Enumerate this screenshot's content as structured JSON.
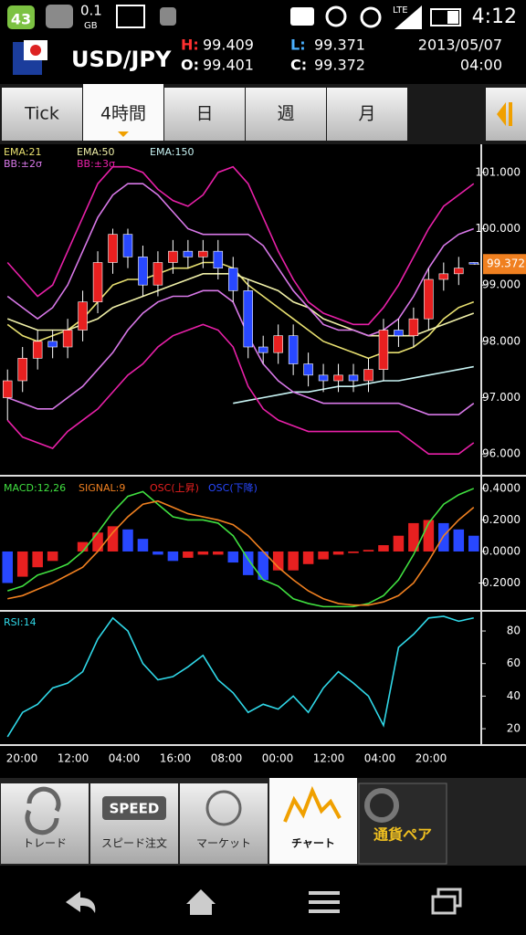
{
  "status_bar": {
    "notification_count": "43",
    "data_amount": "0.1",
    "data_unit": "GB",
    "network": "LTE",
    "time": "4:12"
  },
  "header": {
    "pair": "USD/JPY",
    "high_label": "H:",
    "high": 99.409,
    "open_label": "O:",
    "open": 99.401,
    "low_label": "L:",
    "low": 99.371,
    "close_label": "C:",
    "close": 99.372,
    "date": "2013/05/07",
    "time": "04:00"
  },
  "tabs": {
    "items": [
      "Tick",
      "4時間",
      "日",
      "週",
      "月"
    ],
    "active": 1
  },
  "chart_data": [
    {
      "type": "candlestick",
      "last_price": 99.372,
      "ylim": [
        95.63,
        101.5
      ],
      "yticks": [
        {
          "value": 101,
          "label": "101.000"
        },
        {
          "value": 100,
          "label": "100.000"
        },
        {
          "value": 99,
          "label": "99.000"
        },
        {
          "value": 98,
          "label": "98.000"
        },
        {
          "value": 97,
          "label": "97.000"
        },
        {
          "value": 96,
          "label": "96.000"
        }
      ],
      "up_color": "#e82020",
      "down_color": "#2848ff",
      "open": [
        97.0,
        97.3,
        97.7,
        98.0,
        97.9,
        98.2,
        98.7,
        99.4,
        99.9,
        99.5,
        99.0,
        99.4,
        99.6,
        99.5,
        99.6,
        99.3,
        98.9,
        97.9,
        97.8,
        98.1,
        97.6,
        97.4,
        97.3,
        97.4,
        97.3,
        97.5,
        98.2,
        98.1,
        98.4,
        99.1,
        99.2,
        99.401
      ],
      "high": [
        97.5,
        97.9,
        98.2,
        98.2,
        98.4,
        98.9,
        99.6,
        100.0,
        100.0,
        99.7,
        99.6,
        99.8,
        99.8,
        99.8,
        99.8,
        99.5,
        99.1,
        98.1,
        98.3,
        98.3,
        97.8,
        97.6,
        97.6,
        97.6,
        97.7,
        98.4,
        98.4,
        98.6,
        99.3,
        99.4,
        99.5,
        99.409
      ],
      "low": [
        96.6,
        97.1,
        97.5,
        97.7,
        97.7,
        98.0,
        98.5,
        99.2,
        99.3,
        98.8,
        98.8,
        99.2,
        99.3,
        99.3,
        99.1,
        98.7,
        97.7,
        97.6,
        97.6,
        97.4,
        97.2,
        97.1,
        97.1,
        97.1,
        97.1,
        97.3,
        97.9,
        97.9,
        98.2,
        98.9,
        99.0,
        99.371
      ],
      "close": [
        97.3,
        97.7,
        98.0,
        97.9,
        98.2,
        98.7,
        99.4,
        99.9,
        99.5,
        99.0,
        99.4,
        99.6,
        99.5,
        99.6,
        99.3,
        98.9,
        97.9,
        97.8,
        98.1,
        97.6,
        97.4,
        97.3,
        97.4,
        97.3,
        97.5,
        98.2,
        98.1,
        98.4,
        99.1,
        99.2,
        99.3,
        99.372
      ],
      "series": [
        {
          "name": "EMA:21",
          "color": "#e8e070",
          "values": [
            98.3,
            98.1,
            98.0,
            98.1,
            98.2,
            98.4,
            98.7,
            99.0,
            99.1,
            99.1,
            99.2,
            99.3,
            99.3,
            99.4,
            99.4,
            99.3,
            99.0,
            98.8,
            98.6,
            98.4,
            98.2,
            98.0,
            97.9,
            97.8,
            97.7,
            97.8,
            97.8,
            97.9,
            98.1,
            98.4,
            98.6,
            98.7
          ]
        },
        {
          "name": "EMA:50",
          "color": "#f0f0a8",
          "values": [
            98.4,
            98.3,
            98.2,
            98.2,
            98.2,
            98.3,
            98.4,
            98.6,
            98.7,
            98.8,
            98.9,
            99.0,
            99.1,
            99.2,
            99.2,
            99.2,
            99.1,
            99.0,
            98.9,
            98.7,
            98.6,
            98.4,
            98.3,
            98.2,
            98.1,
            98.1,
            98.1,
            98.1,
            98.2,
            98.3,
            98.4,
            98.5
          ]
        },
        {
          "name": "EMA:150",
          "color": "#c8f4f4",
          "values": [
            null,
            null,
            null,
            null,
            null,
            null,
            null,
            null,
            null,
            null,
            null,
            null,
            null,
            null,
            null,
            96.9,
            96.95,
            97.0,
            97.05,
            97.1,
            97.1,
            97.15,
            97.2,
            97.2,
            97.25,
            97.3,
            97.3,
            97.35,
            97.4,
            97.45,
            97.5,
            97.55
          ]
        },
        {
          "name": "BB:±2σ",
          "color": "#d878e8",
          "values": [
            98.8,
            98.6,
            98.4,
            98.6,
            99.0,
            99.6,
            100.2,
            100.6,
            100.8,
            100.8,
            100.6,
            100.3,
            100.0,
            99.9,
            99.9,
            99.9,
            99.9,
            99.7,
            99.3,
            98.9,
            98.6,
            98.3,
            98.2,
            98.2,
            98.1,
            98.2,
            98.4,
            98.8,
            99.3,
            99.7,
            99.9,
            100.0
          ]
        },
        {
          "color": "#d878e8",
          "values": [
            97.0,
            96.9,
            96.8,
            96.8,
            97.0,
            97.2,
            97.5,
            97.8,
            98.2,
            98.5,
            98.7,
            98.8,
            98.8,
            98.9,
            98.9,
            98.7,
            98.1,
            97.6,
            97.3,
            97.1,
            97.0,
            96.9,
            96.9,
            96.9,
            96.9,
            96.9,
            96.9,
            96.8,
            96.7,
            96.7,
            96.7,
            96.9
          ]
        },
        {
          "name": "BB:±3σ",
          "color": "#e820a8",
          "values": [
            99.4,
            99.1,
            98.8,
            99.0,
            99.6,
            100.2,
            100.8,
            101.1,
            101.1,
            101.0,
            100.7,
            100.5,
            100.4,
            100.6,
            101.0,
            101.1,
            100.8,
            100.2,
            99.6,
            99.1,
            98.7,
            98.5,
            98.4,
            98.3,
            98.3,
            98.6,
            99.0,
            99.5,
            100.0,
            100.4,
            100.6,
            100.8
          ]
        },
        {
          "color": "#e820a8",
          "values": [
            96.6,
            96.3,
            96.2,
            96.1,
            96.4,
            96.6,
            96.8,
            97.1,
            97.4,
            97.6,
            97.9,
            98.1,
            98.2,
            98.3,
            98.2,
            97.9,
            97.2,
            96.8,
            96.6,
            96.5,
            96.4,
            96.4,
            96.4,
            96.4,
            96.4,
            96.4,
            96.4,
            96.2,
            96.0,
            96.0,
            96.0,
            96.2
          ]
        }
      ]
    },
    {
      "type": "macd",
      "ylim": [
        -0.371,
        0.475
      ],
      "yticks": [
        {
          "value": 0.4,
          "label": "0.4000"
        },
        {
          "value": 0.2,
          "label": "0.2000"
        },
        {
          "value": 0,
          "label": "0.0000"
        },
        {
          "value": -0.2,
          "label": "-0.2000"
        }
      ],
      "osc": {
        "up_name": "OSC(上昇)",
        "up_color": "#e82020",
        "down_name": "OSC(下降)",
        "down_color": "#2848ff",
        "values": [
          -0.2,
          -0.16,
          -0.1,
          -0.06,
          0.0,
          0.06,
          0.12,
          0.16,
          0.14,
          0.08,
          -0.02,
          -0.06,
          -0.04,
          -0.02,
          -0.02,
          -0.07,
          -0.15,
          -0.18,
          -0.12,
          -0.12,
          -0.08,
          -0.05,
          -0.02,
          -0.01,
          0.01,
          0.04,
          0.1,
          0.18,
          0.2,
          0.18,
          0.14,
          0.1
        ]
      },
      "series": [
        {
          "name": "MACD:12,26",
          "color": "#40e040",
          "values": [
            -0.25,
            -0.22,
            -0.15,
            -0.12,
            -0.08,
            0.0,
            0.12,
            0.25,
            0.35,
            0.38,
            0.3,
            0.22,
            0.2,
            0.2,
            0.18,
            0.1,
            -0.05,
            -0.18,
            -0.22,
            -0.3,
            -0.33,
            -0.35,
            -0.35,
            -0.35,
            -0.33,
            -0.28,
            -0.18,
            -0.02,
            0.18,
            0.3,
            0.36,
            0.4
          ]
        },
        {
          "name": "SIGNAL:9",
          "color": "#f08020",
          "values": [
            -0.3,
            -0.28,
            -0.24,
            -0.2,
            -0.15,
            -0.1,
            0.0,
            0.12,
            0.22,
            0.3,
            0.32,
            0.28,
            0.24,
            0.22,
            0.2,
            0.17,
            0.1,
            0.0,
            -0.1,
            -0.18,
            -0.25,
            -0.3,
            -0.33,
            -0.34,
            -0.34,
            -0.32,
            -0.28,
            -0.2,
            -0.06,
            0.1,
            0.2,
            0.28
          ]
        }
      ]
    },
    {
      "type": "line",
      "ylim": [
        10.5,
        91.8
      ],
      "yticks": [
        80,
        60,
        40,
        20
      ],
      "series": [
        {
          "name": "RSI:14",
          "color": "#30d8e8",
          "values": [
            15,
            30,
            35,
            45,
            48,
            55,
            75,
            88,
            80,
            60,
            50,
            52,
            58,
            65,
            50,
            42,
            30,
            35,
            32,
            40,
            30,
            45,
            55,
            48,
            40,
            22,
            70,
            78,
            88,
            89,
            86,
            88
          ]
        }
      ],
      "x_labels": [
        "20:00",
        "12:00",
        "04:00",
        "16:00",
        "08:00",
        "00:00",
        "12:00",
        "04:00",
        "20:00"
      ]
    }
  ],
  "bottom_nav": {
    "items": [
      "トレード",
      "スピード注文",
      "マーケット",
      "チャート",
      "通貨ペア"
    ],
    "speed_icon": "SPEED",
    "active": 3
  }
}
